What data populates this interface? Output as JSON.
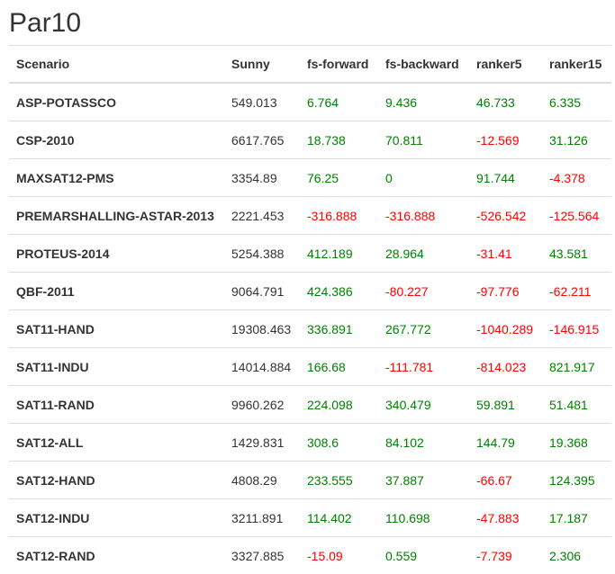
{
  "page": {
    "title": "Par10"
  },
  "colors": {
    "positive": "#008000",
    "negative": "#ff0000",
    "text": "#333333"
  },
  "table": {
    "columns": [
      "Scenario",
      "Sunny",
      "fs-forward",
      "fs-backward",
      "ranker5",
      "ranker15"
    ],
    "rows": [
      {
        "scenario": "ASP-POTASSCO",
        "sunny": "549.013",
        "fs_forward": "6.764",
        "fs_backward": "9.436",
        "ranker5": "46.733",
        "ranker15": "6.335"
      },
      {
        "scenario": "CSP-2010",
        "sunny": "6617.765",
        "fs_forward": "18.738",
        "fs_backward": "70.811",
        "ranker5": "-12.569",
        "ranker15": "31.126"
      },
      {
        "scenario": "MAXSAT12-PMS",
        "sunny": "3354.89",
        "fs_forward": "76.25",
        "fs_backward": "0",
        "ranker5": "91.744",
        "ranker15": "-4.378"
      },
      {
        "scenario": "PREMARSHALLING-ASTAR-2013",
        "sunny": "2221.453",
        "fs_forward": "-316.888",
        "fs_backward": "-316.888",
        "ranker5": "-526.542",
        "ranker15": "-125.564"
      },
      {
        "scenario": "PROTEUS-2014",
        "sunny": "5254.388",
        "fs_forward": "412.189",
        "fs_backward": "28.964",
        "ranker5": "-31.41",
        "ranker15": "43.581"
      },
      {
        "scenario": "QBF-2011",
        "sunny": "9064.791",
        "fs_forward": "424.386",
        "fs_backward": "-80.227",
        "ranker5": "-97.776",
        "ranker15": "-62.211"
      },
      {
        "scenario": "SAT11-HAND",
        "sunny": "19308.463",
        "fs_forward": "336.891",
        "fs_backward": "267.772",
        "ranker5": "-1040.289",
        "ranker15": "-146.915"
      },
      {
        "scenario": "SAT11-INDU",
        "sunny": "14014.884",
        "fs_forward": "166.68",
        "fs_backward": "-111.781",
        "ranker5": "-814.023",
        "ranker15": "821.917"
      },
      {
        "scenario": "SAT11-RAND",
        "sunny": "9960.262",
        "fs_forward": "224.098",
        "fs_backward": "340.479",
        "ranker5": "59.891",
        "ranker15": "51.481"
      },
      {
        "scenario": "SAT12-ALL",
        "sunny": "1429.831",
        "fs_forward": "308.6",
        "fs_backward": "84.102",
        "ranker5": "144.79",
        "ranker15": "19.368"
      },
      {
        "scenario": "SAT12-HAND",
        "sunny": "4808.29",
        "fs_forward": "233.555",
        "fs_backward": "37.887",
        "ranker5": "-66.67",
        "ranker15": "124.395"
      },
      {
        "scenario": "SAT12-INDU",
        "sunny": "3211.891",
        "fs_forward": "114.402",
        "fs_backward": "110.698",
        "ranker5": "-47.883",
        "ranker15": "17.187"
      },
      {
        "scenario": "SAT12-RAND",
        "sunny": "3327.885",
        "fs_forward": "-15.09",
        "fs_backward": "0.559",
        "ranker5": "-7.739",
        "ranker15": "2.306"
      }
    ]
  }
}
